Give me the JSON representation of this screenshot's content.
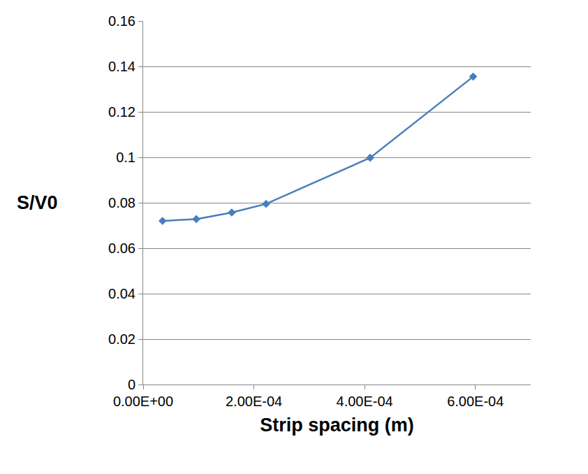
{
  "chart_data": {
    "type": "line",
    "x_label": "Strip spacing (m)",
    "y_label": "S/V0",
    "x": [
      3.5e-05,
      9.6e-05,
      0.00016,
      0.000222,
      0.00041,
      0.000596
    ],
    "values": [
      0.072,
      0.0728,
      0.0757,
      0.0795,
      0.0998,
      0.1355
    ],
    "color": "#4a7ebb",
    "marker": "diamond",
    "line_style": "solid",
    "xlim": [
      0,
      0.0007
    ],
    "xticks": [
      {
        "value": 0,
        "label": "0.00E+00"
      },
      {
        "value": 0.0002,
        "label": "2.00E-04"
      },
      {
        "value": 0.0004,
        "label": "4.00E-04"
      },
      {
        "value": 0.0006,
        "label": "6.00E-04"
      }
    ],
    "ylim": [
      0,
      0.16
    ],
    "yticks": [
      0,
      0.02,
      0.04,
      0.06,
      0.08,
      0.1,
      0.12,
      0.14,
      0.16
    ],
    "grid": true
  }
}
